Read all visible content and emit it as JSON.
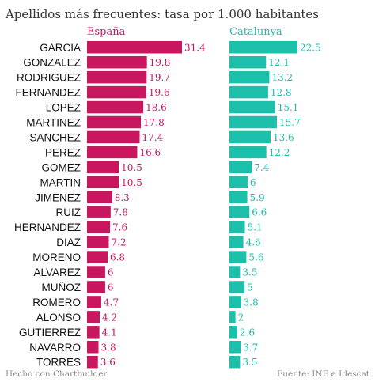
{
  "chart_data": {
    "type": "bar",
    "title": "Apellidos más frecuentes: tasa por 1.000 habitantes",
    "categories": [
      "GARCIA",
      "GONZALEZ",
      "RODRIGUEZ",
      "FERNANDEZ",
      "LOPEZ",
      "MARTINEZ",
      "SANCHEZ",
      "PEREZ",
      "GOMEZ",
      "MARTIN",
      "JIMENEZ",
      "RUIZ",
      "HERNANDEZ",
      "DIAZ",
      "MORENO",
      "ALVAREZ",
      "MUÑOZ",
      "ROMERO",
      "ALONSO",
      "GUTIERREZ",
      "NAVARRO",
      "TORRES"
    ],
    "series": [
      {
        "name": "España",
        "color": "#c8175f",
        "values": [
          31.4,
          19.8,
          19.7,
          19.6,
          18.6,
          17.8,
          17.4,
          16.6,
          10.5,
          10.5,
          8.3,
          7.8,
          7.6,
          7.2,
          6.8,
          6,
          6,
          4.7,
          4.2,
          4.1,
          3.8,
          3.6
        ],
        "labels": [
          "31.4",
          "19.8",
          "19.7",
          "19.6",
          "18.6",
          "17.8",
          "17.4",
          "16.6",
          "10.5",
          "10.5",
          "8.3",
          "7.8",
          "7.6",
          "7.2",
          "6.8",
          "6",
          "6",
          "4.7",
          "4.2",
          "4.1",
          "3.8",
          "3.6"
        ]
      },
      {
        "name": "Catalunya",
        "color": "#1bbfaa",
        "values": [
          22.5,
          12.1,
          13.2,
          12.8,
          15.1,
          15.7,
          13.6,
          12.2,
          7.4,
          6,
          5.9,
          6.6,
          5.1,
          4.6,
          5.6,
          3.5,
          5,
          3.8,
          2,
          2.6,
          3.7,
          3.5
        ],
        "labels": [
          "22.5",
          "12.1",
          "13.2",
          "12.8",
          "15.1",
          "15.7",
          "13.6",
          "12.2",
          "7.4",
          "6",
          "5.9",
          "6.6",
          "5.1",
          "4.6",
          "5.6",
          "3.5",
          "5",
          "3.8",
          "2",
          "2.6",
          "3.7",
          "3.5"
        ]
      }
    ],
    "xlim": [
      0,
      31.4
    ],
    "grid": false
  },
  "footer": {
    "left": "Hecho con Chartbuilder",
    "right": "Fuente: INE e Idescat"
  }
}
